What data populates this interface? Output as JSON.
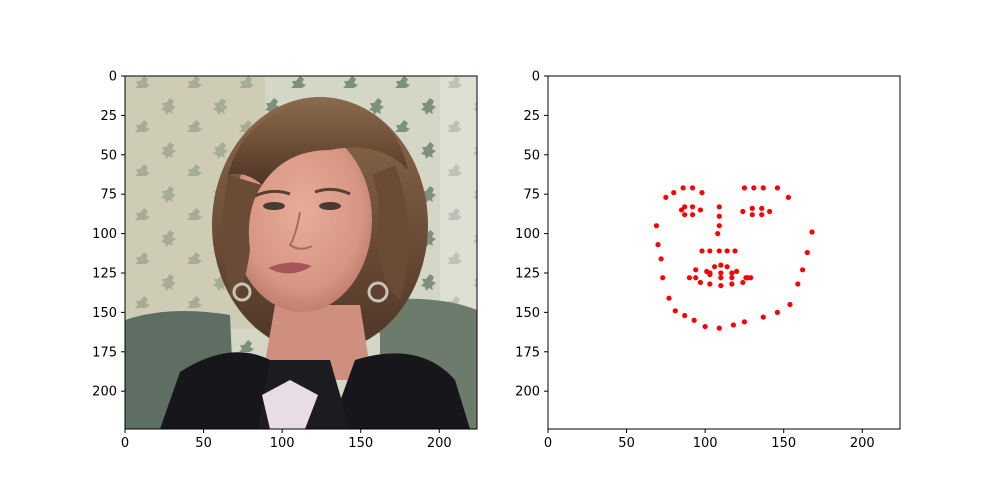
{
  "chart_data": [
    {
      "type": "image",
      "subject": "woman with short brown hair, hoop earrings and a dark jacket in front of patterned wallpaper",
      "xlim": [
        0,
        224
      ],
      "ylim": [
        224,
        0
      ],
      "xticks": [
        0,
        50,
        100,
        150,
        200
      ],
      "yticks": [
        0,
        25,
        50,
        75,
        100,
        125,
        150,
        175,
        200
      ],
      "title": "",
      "xlabel": "",
      "ylabel": ""
    },
    {
      "type": "scatter",
      "xlim": [
        0,
        224
      ],
      "ylim": [
        224,
        0
      ],
      "xticks": [
        0,
        50,
        100,
        150,
        200
      ],
      "yticks": [
        0,
        25,
        50,
        75,
        100,
        125,
        150,
        175,
        200
      ],
      "title": "",
      "xlabel": "",
      "ylabel": "",
      "marker_color": "#ff0000",
      "x": [
        69,
        70,
        72,
        73,
        77,
        81,
        87,
        93,
        100,
        109,
        118,
        125,
        137,
        146,
        154,
        159,
        162,
        165,
        168,
        75,
        80,
        86,
        92,
        98,
        125,
        131,
        137,
        146,
        153,
        109,
        109,
        109,
        108,
        98,
        103,
        109,
        114,
        119,
        85,
        87,
        92,
        97,
        87,
        92,
        124,
        130,
        136,
        141,
        130,
        136,
        90,
        94,
        101,
        106,
        110,
        114,
        120,
        126,
        129,
        124,
        117,
        110,
        103,
        97,
        94,
        103,
        110,
        117,
        127,
        117,
        110,
        103
      ],
      "y": [
        95,
        107,
        116,
        128,
        141,
        149,
        152,
        155,
        159,
        160,
        158,
        156,
        153,
        150,
        145,
        132,
        123,
        112,
        99,
        77,
        74,
        71,
        71,
        74,
        71,
        71,
        71,
        71,
        77,
        83,
        89,
        95,
        100,
        111,
        111,
        111,
        111,
        111,
        85,
        83,
        83,
        85,
        88,
        88,
        86,
        84,
        84,
        86,
        88,
        88,
        128,
        128,
        124,
        121,
        120,
        121,
        124,
        128,
        128,
        131,
        132,
        133,
        132,
        131,
        123,
        125,
        125,
        125,
        128,
        128,
        128,
        126
      ]
    }
  ]
}
